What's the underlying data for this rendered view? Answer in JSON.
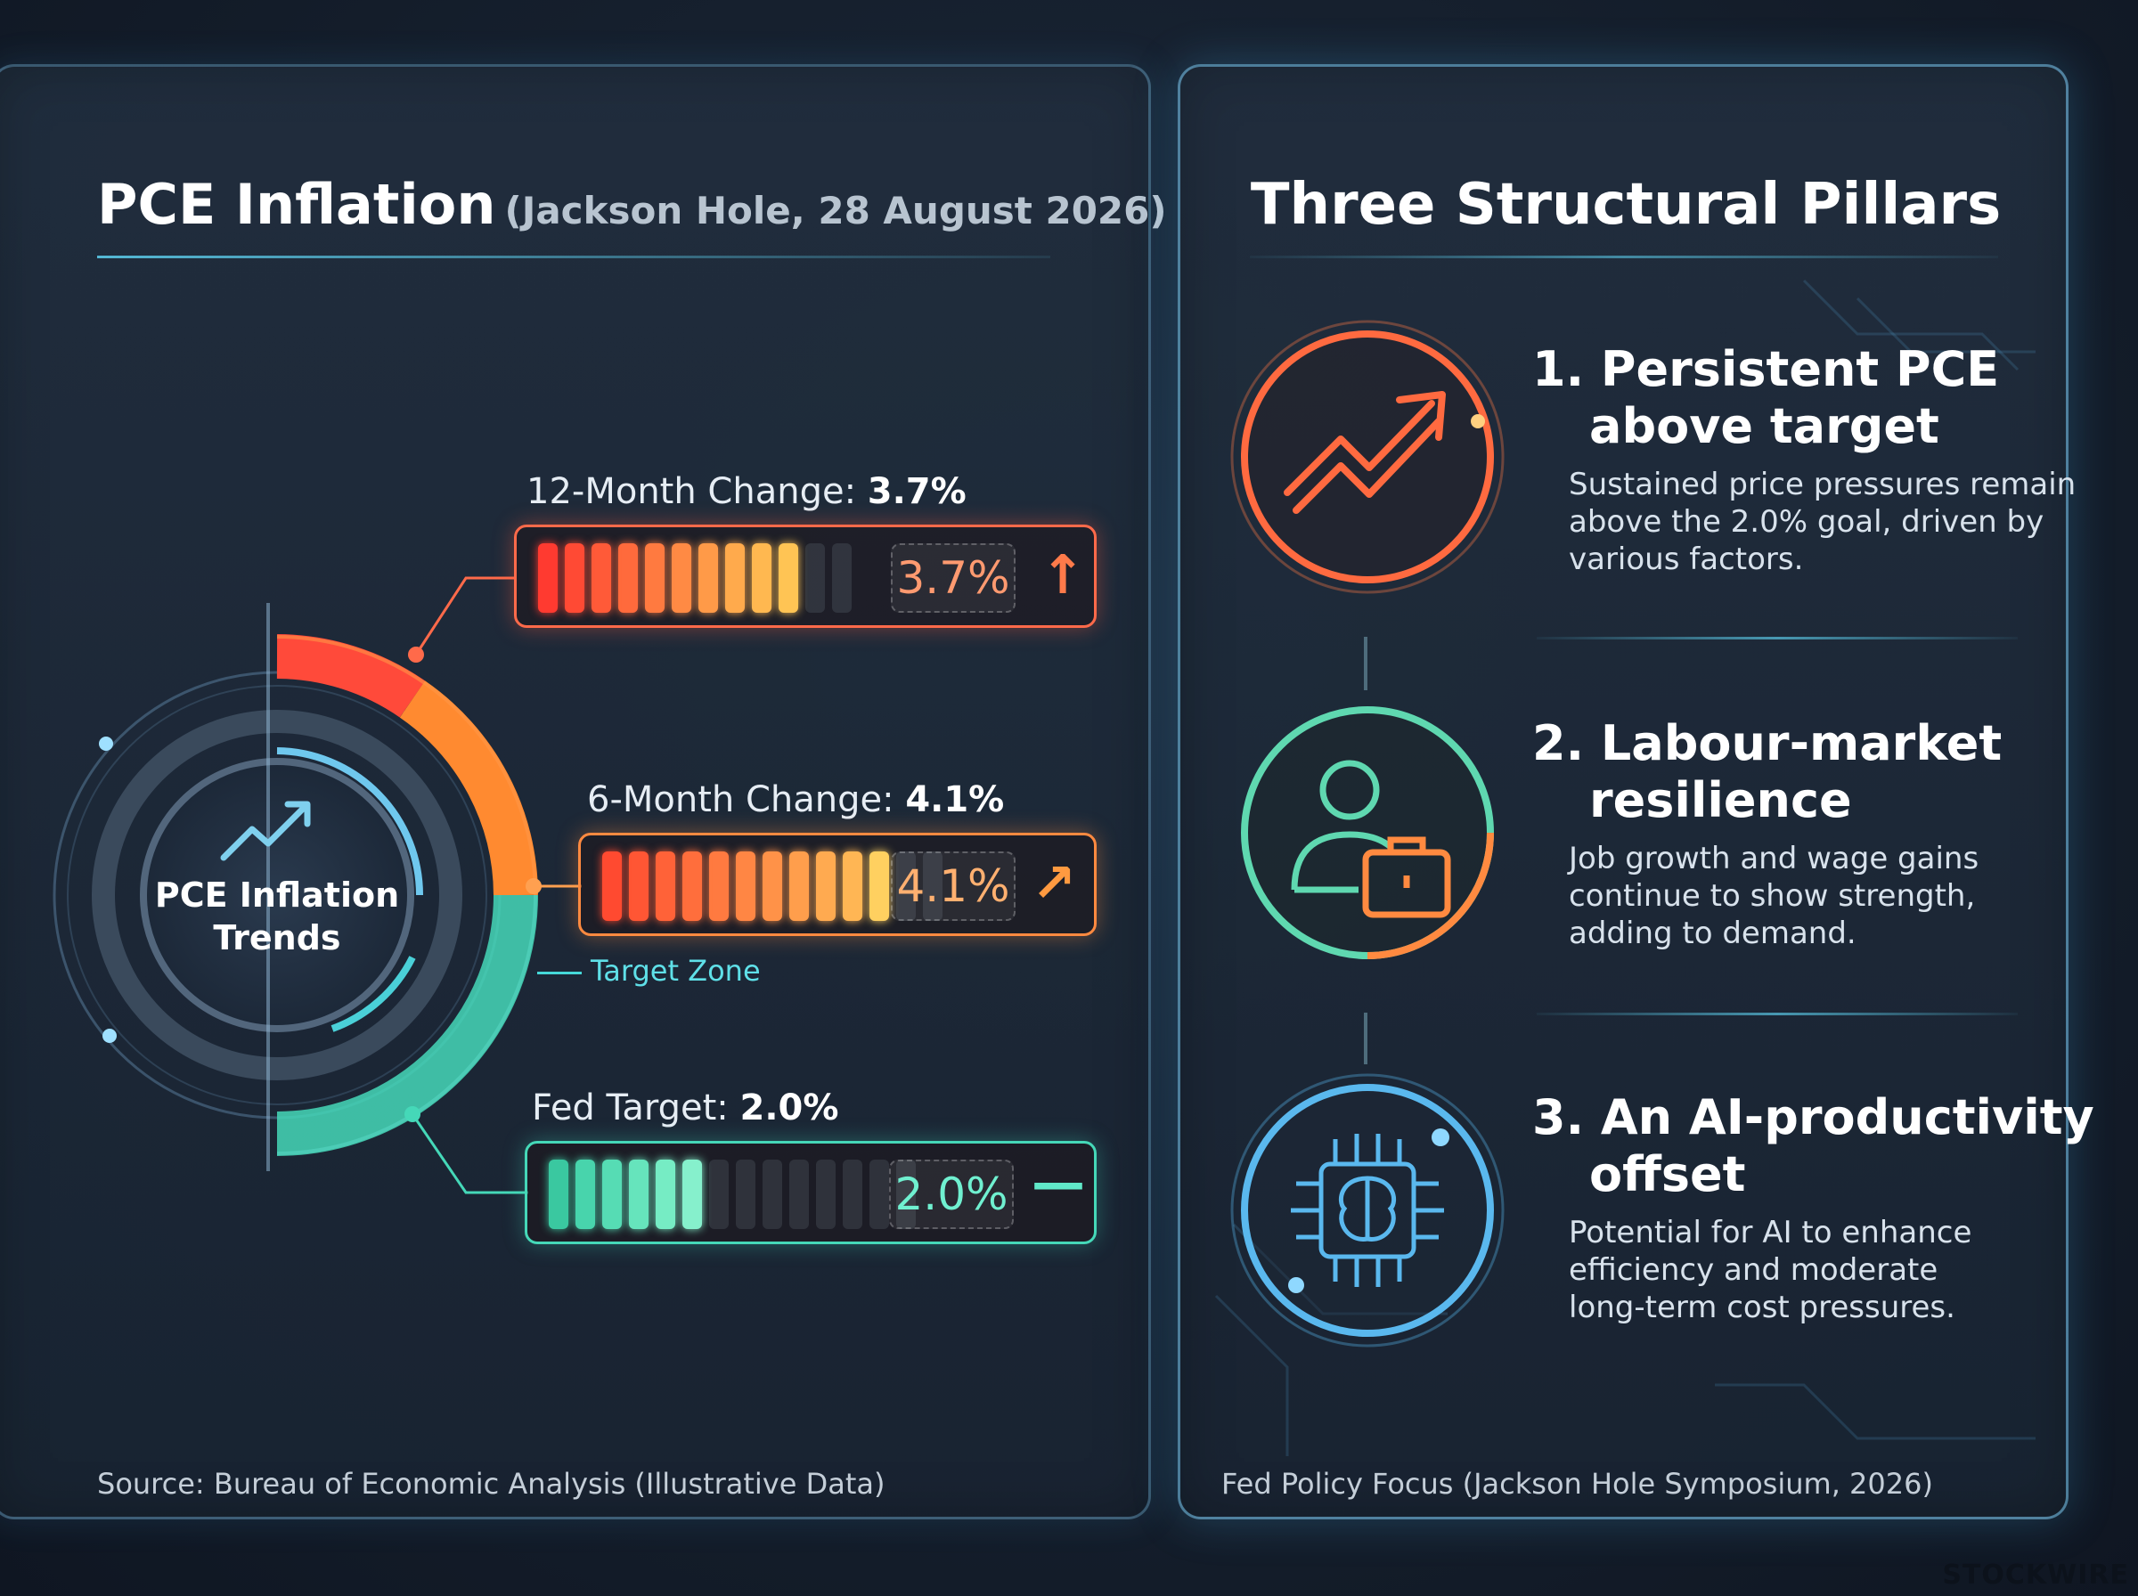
{
  "left_panel": {
    "title": "PCE Inflation",
    "subtitle": "(Jackson Hole, 28 August 2026)",
    "gauge_label_line1": "PCE Inflation",
    "gauge_label_line2": "Trends",
    "target_zone_label": "Target Zone",
    "metrics": [
      {
        "label": "12-Month Change: ",
        "value_bold": "3.7%",
        "value": "3.7%",
        "lit_segments": 10,
        "trend": "up"
      },
      {
        "label": "6-Month Change: ",
        "value_bold": "4.1%",
        "value": "4.1%",
        "lit_segments": 11,
        "trend": "up-right"
      },
      {
        "label": "Fed Target: ",
        "value_bold": "2.0%",
        "value": "2.0%",
        "lit_segments": 6,
        "trend": "flat"
      }
    ],
    "footer": "Source: Bureau of Economic Analysis (Illustrative Data)"
  },
  "right_panel": {
    "title": "Three Structural Pillars",
    "pillars": [
      {
        "title_line1": "1. Persistent PCE",
        "title_line2": "above target",
        "text_line1": "Sustained price pressures remain",
        "text_line2": "above the 2.0% goal, driven by",
        "text_line3": "various factors.",
        "icon": "trend-up-arrow-icon"
      },
      {
        "title_line1": "2. Labour-market",
        "title_line2": "resilience",
        "text_line1": "Job growth and wage gains",
        "text_line2": "continue to show strength,",
        "text_line3": "adding to demand.",
        "icon": "worker-briefcase-icon"
      },
      {
        "title_line1": "3. An AI-productivity",
        "title_line2": "offset",
        "text_line1": "Potential for AI to enhance",
        "text_line2": "efficiency and moderate",
        "text_line3": "long-term cost pressures.",
        "icon": "ai-brain-chip-icon"
      }
    ],
    "footer": "Fed Policy Focus (Jackson Hole Symposium, 2026)"
  },
  "watermark": "STOCKWIRE",
  "colors": {
    "hot": "#ff4a3a",
    "warm": "#ff8a30",
    "cool": "#45d8b8",
    "accent": "#5fd0f0"
  }
}
